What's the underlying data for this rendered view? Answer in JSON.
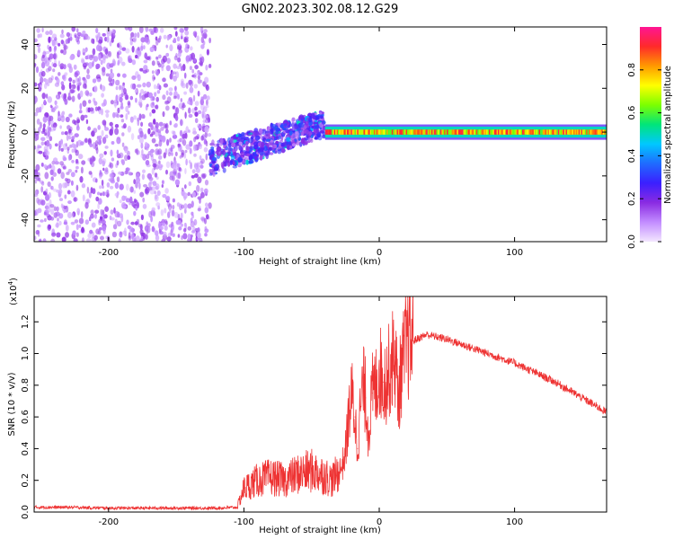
{
  "figure": {
    "title": "GN02.2023.302.08.12.G29"
  },
  "colormap": {
    "name": "rainbow",
    "stops": [
      "#f3e6ff",
      "#c28cff",
      "#8a2be2",
      "#3b1fff",
      "#1f6bff",
      "#00c8ff",
      "#00e57a",
      "#7cff00",
      "#ffff00",
      "#ff9900",
      "#ff2a2a",
      "#ff1493"
    ]
  },
  "chart_data": [
    {
      "id": "spectrogram",
      "type": "heatmap",
      "xlabel": "Height of straight line (km)",
      "ylabel": "Frequency (Hz)",
      "xlim": [
        -255,
        168
      ],
      "ylim": [
        -50,
        48
      ],
      "xticks": [
        -200,
        -100,
        0,
        100
      ],
      "xtick_labels": [
        "-200",
        "-100",
        "0",
        "100"
      ],
      "yticks": [
        -40,
        -20,
        0,
        20,
        40
      ],
      "ytick_labels": [
        "-40",
        "-20",
        "0",
        "20",
        "40"
      ],
      "colorbar": {
        "label": "Normalized spectral amplitude",
        "range": [
          0,
          1
        ],
        "ticks": [
          0.0,
          0.2,
          0.4,
          0.6,
          0.8
        ],
        "tick_labels": [
          "0.0",
          "0.2",
          "0.4",
          "0.6",
          "0.8"
        ]
      },
      "regions": [
        {
          "x_range": [
            -255,
            -125
          ],
          "y_range": [
            -50,
            48
          ],
          "amplitude_range": [
            0.05,
            0.18
          ],
          "pattern": "scattered noise"
        },
        {
          "x_range": [
            -125,
            -40
          ],
          "y_range_start": [
            -20,
            -5
          ],
          "y_range_end": [
            -2,
            10
          ],
          "amplitude_range": [
            0.1,
            0.35
          ],
          "pattern": "rising band"
        },
        {
          "x_range": [
            -40,
            168
          ],
          "y_center": 0,
          "y_halfwidth": 2.5,
          "amplitude_range": [
            0.6,
            0.95
          ],
          "pattern": "steady carrier line"
        }
      ]
    },
    {
      "id": "snr",
      "type": "line",
      "xlabel": "Height of straight line (km)",
      "ylabel": "SNR (10 * v/v)",
      "y_multiplier_label": "(x10",
      "y_multiplier_exponent": "4",
      "y_multiplier_suffix": ")",
      "xlim": [
        -255,
        168
      ],
      "ylim": [
        0,
        13600
      ],
      "xticks": [
        -200,
        -100,
        0,
        100
      ],
      "xtick_labels": [
        "-200",
        "-100",
        "0",
        "100"
      ],
      "yticks": [
        0,
        2000,
        4000,
        6000,
        8000,
        10000,
        12000
      ],
      "ytick_labels": [
        "0.0",
        "0.2",
        "0.4",
        "0.6",
        "0.8",
        "1.0",
        "1.2"
      ],
      "series": [
        {
          "color": "#ee3333",
          "x": [
            -255,
            -230,
            -200,
            -170,
            -140,
            -120,
            -105,
            -100,
            -90,
            -80,
            -70,
            -60,
            -50,
            -40,
            -35,
            -30,
            -27,
            -25,
            -22,
            -20,
            -18,
            -16,
            -14,
            -12,
            -10,
            -8,
            -5,
            -2,
            0,
            3,
            6,
            9,
            12,
            14,
            16,
            20,
            25,
            30,
            35,
            40,
            50,
            60,
            70,
            80,
            90,
            100,
            110,
            120,
            130,
            140,
            150,
            160,
            168
          ],
          "y": [
            300,
            300,
            250,
            250,
            250,
            250,
            300,
            1500,
            2000,
            2200,
            2000,
            2400,
            2600,
            2300,
            2000,
            2500,
            3000,
            3800,
            6500,
            7200,
            6000,
            4000,
            6500,
            8000,
            7200,
            5000,
            7500,
            8000,
            9000,
            8200,
            8500,
            9500,
            9800,
            7000,
            8800,
            10500,
            10800,
            11000,
            11200,
            11100,
            10900,
            10600,
            10300,
            10000,
            9700,
            9400,
            9000,
            8600,
            8200,
            7700,
            7200,
            6700,
            6300
          ]
        }
      ]
    }
  ]
}
